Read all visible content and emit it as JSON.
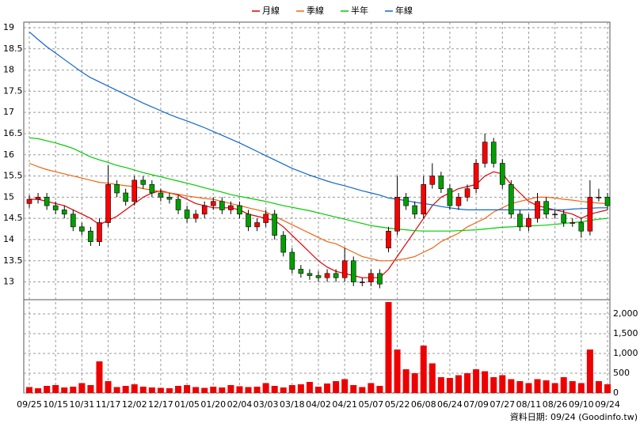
{
  "chart_data": {
    "type": "candlestick",
    "categories": [
      "09/25",
      null,
      null,
      "10/15",
      null,
      null,
      "10/31",
      null,
      null,
      "11/17",
      null,
      null,
      "12/02",
      null,
      null,
      "12/17",
      null,
      null,
      "01/05",
      null,
      null,
      "01/20",
      null,
      null,
      "02/04",
      null,
      null,
      "03/03",
      null,
      null,
      "03/18",
      null,
      null,
      "04/02",
      null,
      null,
      "04/21",
      null,
      null,
      "05/07",
      null,
      null,
      "05/22",
      null,
      null,
      "06/08",
      null,
      null,
      "06/24",
      null,
      null,
      "07/09",
      null,
      null,
      "07/27",
      null,
      null,
      "08/11",
      null,
      null,
      "08/26",
      null,
      null,
      "09/10",
      null,
      null,
      "09/24"
    ],
    "open": [
      14.85,
      14.95,
      15.0,
      14.8,
      14.7,
      14.6,
      14.3,
      14.2,
      13.95,
      14.4,
      15.3,
      15.1,
      14.9,
      15.4,
      15.3,
      15.1,
      15.0,
      14.95,
      14.7,
      14.5,
      14.6,
      14.8,
      14.9,
      14.7,
      14.8,
      14.6,
      14.3,
      14.4,
      14.6,
      14.1,
      13.7,
      13.3,
      13.2,
      13.15,
      13.1,
      13.2,
      13.1,
      13.5,
      13.0,
      13.0,
      13.2,
      13.8,
      14.2,
      15.0,
      14.8,
      14.6,
      15.3,
      15.5,
      15.2,
      14.8,
      15.0,
      15.2,
      15.8,
      16.3,
      15.8,
      15.3,
      14.6,
      14.3,
      14.5,
      14.9,
      14.6,
      14.6,
      14.4,
      14.4,
      14.2,
      15.0,
      15.0
    ],
    "high": [
      15.05,
      15.1,
      15.1,
      14.9,
      14.8,
      14.7,
      14.4,
      14.3,
      14.5,
      15.75,
      15.4,
      15.2,
      15.5,
      15.5,
      15.4,
      15.2,
      15.1,
      15.05,
      14.8,
      14.7,
      14.9,
      15.0,
      15.0,
      14.9,
      14.9,
      14.7,
      14.5,
      14.7,
      14.7,
      14.2,
      13.8,
      13.4,
      13.3,
      13.25,
      13.3,
      13.3,
      13.8,
      13.6,
      13.1,
      13.3,
      13.3,
      14.3,
      15.5,
      15.1,
      14.9,
      15.5,
      15.8,
      15.6,
      15.3,
      15.1,
      15.3,
      15.9,
      16.5,
      16.4,
      15.9,
      15.4,
      14.7,
      14.6,
      15.1,
      15.0,
      14.7,
      14.7,
      14.5,
      14.5,
      15.4,
      15.2,
      15.1
    ],
    "low": [
      14.75,
      14.85,
      14.7,
      14.6,
      14.5,
      14.2,
      14.1,
      13.85,
      13.85,
      14.3,
      15.0,
      14.8,
      14.8,
      15.2,
      15.0,
      14.9,
      14.85,
      14.6,
      14.4,
      14.4,
      14.5,
      14.7,
      14.6,
      14.6,
      14.5,
      14.2,
      14.2,
      14.3,
      14.0,
      13.6,
      13.2,
      13.1,
      13.05,
      13.0,
      13.0,
      13.0,
      13.0,
      12.9,
      12.9,
      12.9,
      12.85,
      13.7,
      14.1,
      14.7,
      14.5,
      14.5,
      15.2,
      15.1,
      14.7,
      14.7,
      14.9,
      15.1,
      15.7,
      15.7,
      15.2,
      14.5,
      14.2,
      14.2,
      14.4,
      14.5,
      14.5,
      14.3,
      14.3,
      14.05,
      14.1,
      14.9,
      14.7
    ],
    "close": [
      14.95,
      15.0,
      14.8,
      14.7,
      14.6,
      14.3,
      14.2,
      13.95,
      14.4,
      15.3,
      15.1,
      14.9,
      15.4,
      15.3,
      15.1,
      15.0,
      14.95,
      14.7,
      14.5,
      14.6,
      14.8,
      14.9,
      14.7,
      14.8,
      14.6,
      14.3,
      14.4,
      14.6,
      14.1,
      13.7,
      13.3,
      13.2,
      13.15,
      13.1,
      13.2,
      13.1,
      13.5,
      13.0,
      13.0,
      13.2,
      12.95,
      14.2,
      15.0,
      14.8,
      14.6,
      15.3,
      15.5,
      15.2,
      14.8,
      15.0,
      15.2,
      15.8,
      16.3,
      15.8,
      15.3,
      14.6,
      14.3,
      14.5,
      14.9,
      14.6,
      14.6,
      14.4,
      14.4,
      14.2,
      15.0,
      15.0,
      14.8
    ],
    "up_color": "#ff0000",
    "down_color": "#00a000",
    "volume": [
      150,
      120,
      180,
      200,
      140,
      160,
      250,
      200,
      800,
      300,
      150,
      180,
      220,
      160,
      140,
      130,
      120,
      180,
      200,
      150,
      130,
      160,
      140,
      200,
      170,
      150,
      160,
      250,
      180,
      140,
      200,
      220,
      280,
      160,
      240,
      300,
      350,
      200,
      150,
      250,
      180,
      2300,
      1100,
      600,
      500,
      1200,
      750,
      400,
      380,
      450,
      500,
      600,
      550,
      400,
      450,
      350,
      300,
      250,
      350,
      320,
      250,
      400,
      300,
      250,
      1100,
      300,
      220
    ],
    "volume_color": "#ee0000",
    "series": [
      {
        "name": "月線",
        "color": "#dd0000",
        "values": [
          14.95,
          14.95,
          14.9,
          14.85,
          14.8,
          14.7,
          14.6,
          14.5,
          14.35,
          14.45,
          14.55,
          14.7,
          14.85,
          15.0,
          15.1,
          15.15,
          15.1,
          15.05,
          14.95,
          14.85,
          14.8,
          14.75,
          14.75,
          14.75,
          14.7,
          14.6,
          14.55,
          14.5,
          14.45,
          14.3,
          14.1,
          13.9,
          13.7,
          13.5,
          13.35,
          13.25,
          13.2,
          13.15,
          13.1,
          13.1,
          13.1,
          13.3,
          13.6,
          13.9,
          14.2,
          14.5,
          14.8,
          15.0,
          15.1,
          15.2,
          15.25,
          15.3,
          15.5,
          15.6,
          15.55,
          15.3,
          15.1,
          14.9,
          14.8,
          14.75,
          14.7,
          14.65,
          14.6,
          14.5,
          14.6,
          14.65,
          14.7
        ]
      },
      {
        "name": "季線",
        "color": "#ee6611",
        "values": [
          15.8,
          15.72,
          15.65,
          15.6,
          15.55,
          15.5,
          15.45,
          15.4,
          15.35,
          15.33,
          15.3,
          15.27,
          15.25,
          15.2,
          15.17,
          15.13,
          15.1,
          15.07,
          15.03,
          15.0,
          14.97,
          14.95,
          14.9,
          14.85,
          14.8,
          14.75,
          14.7,
          14.65,
          14.55,
          14.45,
          14.35,
          14.25,
          14.15,
          14.05,
          13.95,
          13.9,
          13.8,
          13.7,
          13.6,
          13.55,
          13.5,
          13.5,
          13.52,
          13.55,
          13.6,
          13.7,
          13.8,
          13.95,
          14.05,
          14.15,
          14.3,
          14.4,
          14.5,
          14.65,
          14.75,
          14.85,
          14.9,
          14.95,
          15.0,
          15.0,
          14.98,
          14.95,
          14.93,
          14.9,
          14.88,
          14.86,
          14.85
        ]
      },
      {
        "name": "半年",
        "color": "#00cc00",
        "values": [
          16.4,
          16.38,
          16.33,
          16.28,
          16.22,
          16.15,
          16.05,
          15.95,
          15.88,
          15.82,
          15.75,
          15.7,
          15.64,
          15.58,
          15.53,
          15.48,
          15.43,
          15.38,
          15.33,
          15.28,
          15.22,
          15.17,
          15.12,
          15.06,
          15.02,
          14.98,
          14.94,
          14.9,
          14.85,
          14.8,
          14.76,
          14.72,
          14.68,
          14.63,
          14.58,
          14.53,
          14.48,
          14.43,
          14.38,
          14.33,
          14.3,
          14.27,
          14.25,
          14.23,
          14.21,
          14.2,
          14.2,
          14.2,
          14.2,
          14.21,
          14.22,
          14.23,
          14.25,
          14.27,
          14.29,
          14.3,
          14.31,
          14.32,
          14.33,
          14.34,
          14.36,
          14.38,
          14.4,
          14.42,
          14.45,
          14.48,
          14.5
        ]
      },
      {
        "name": "年線",
        "color": "#1166cc",
        "values": [
          18.9,
          18.72,
          18.55,
          18.4,
          18.25,
          18.1,
          17.95,
          17.82,
          17.72,
          17.62,
          17.52,
          17.42,
          17.32,
          17.22,
          17.13,
          17.04,
          16.95,
          16.87,
          16.8,
          16.72,
          16.64,
          16.55,
          16.46,
          16.37,
          16.28,
          16.18,
          16.08,
          15.98,
          15.88,
          15.78,
          15.68,
          15.6,
          15.52,
          15.45,
          15.38,
          15.32,
          15.27,
          15.21,
          15.15,
          15.1,
          15.05,
          14.98,
          14.95,
          14.92,
          14.88,
          14.85,
          14.82,
          14.78,
          14.75,
          14.72,
          14.7,
          14.7,
          14.7,
          14.7,
          14.7,
          14.7,
          14.7,
          14.7,
          14.7,
          14.7,
          14.7,
          14.7,
          14.72,
          14.73,
          14.74,
          14.75,
          14.75
        ]
      }
    ],
    "ylim": [
      12.6,
      19.13
    ],
    "yticks": [
      13,
      13.5,
      14,
      14.5,
      15,
      15.5,
      16,
      16.5,
      17,
      17.5,
      18,
      18.5,
      19
    ],
    "y2lim": [
      0,
      2340
    ],
    "y2ticks": [
      0,
      {
        "value": 500,
        "label": "500"
      },
      {
        "value": 1000,
        "label": "1,000"
      },
      {
        "value": 1500,
        "label": "1,500"
      },
      {
        "value": 2000,
        "label": "2,000"
      }
    ],
    "grid": true,
    "footer": "資料日期: 09/24  (Goodinfo.tw)"
  }
}
